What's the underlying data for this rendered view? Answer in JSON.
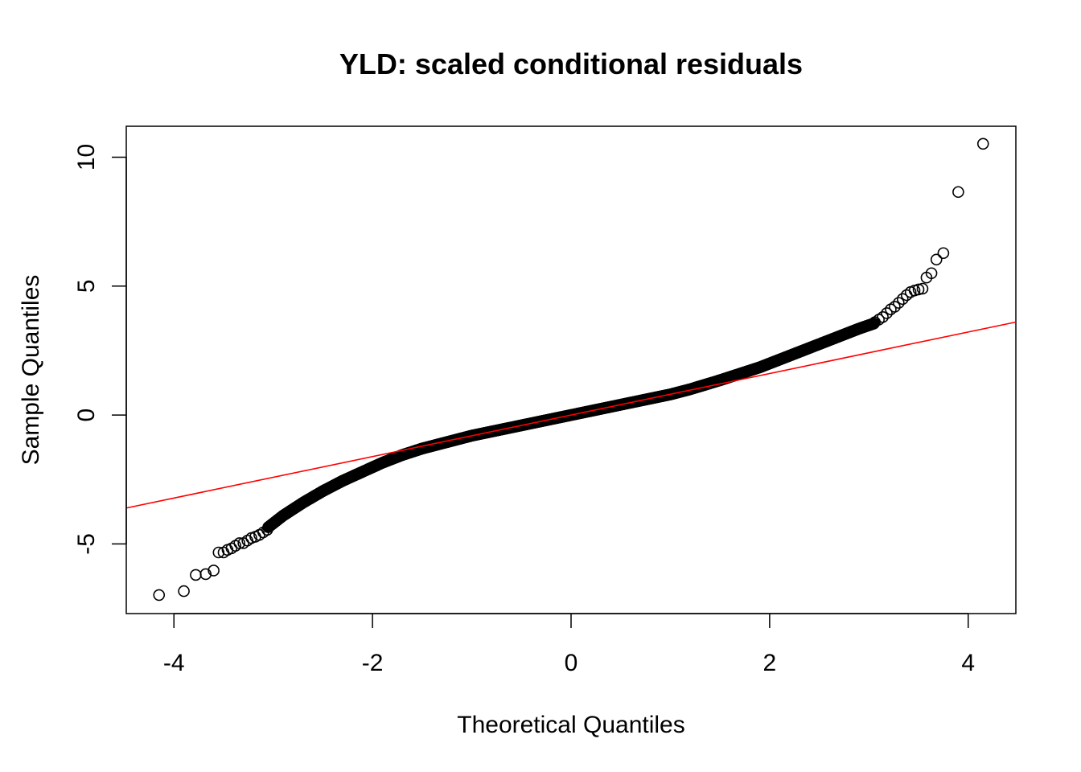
{
  "chart_data": {
    "type": "scatter",
    "title": "YLD: scaled conditional residuals",
    "xlabel": "Theoretical Quantiles",
    "ylabel": "Sample Quantiles",
    "xlim": [
      -4.48,
      4.48
    ],
    "ylim": [
      -7.7,
      11.2
    ],
    "x_ticks": [
      -4,
      -2,
      0,
      2,
      4
    ],
    "x_tick_labels": [
      "-4",
      "-2",
      "0",
      "2",
      "4"
    ],
    "y_ticks": [
      -5,
      0,
      5,
      10
    ],
    "y_tick_labels": [
      "-5",
      "0",
      "5",
      "10"
    ],
    "grid": false,
    "legend": "none",
    "point_color": "#000000",
    "line_color": "#ff0000",
    "reference_line": {
      "intercept": 0.0,
      "slope": 0.805
    },
    "outlier_points": [
      {
        "x": -4.15,
        "y": -6.98
      },
      {
        "x": -3.9,
        "y": -6.83
      },
      {
        "x": -3.78,
        "y": -6.2
      },
      {
        "x": -3.68,
        "y": -6.17
      },
      {
        "x": -3.6,
        "y": -6.03
      },
      {
        "x": -3.55,
        "y": -5.33
      },
      {
        "x": -3.5,
        "y": -5.33
      },
      {
        "x": -3.46,
        "y": -5.23
      },
      {
        "x": -3.42,
        "y": -5.17
      },
      {
        "x": -3.38,
        "y": -5.07
      },
      {
        "x": -3.34,
        "y": -4.97
      },
      {
        "x": -3.3,
        "y": -4.97
      },
      {
        "x": -3.26,
        "y": -4.87
      },
      {
        "x": -3.22,
        "y": -4.77
      },
      {
        "x": -3.18,
        "y": -4.72
      },
      {
        "x": -3.14,
        "y": -4.65
      },
      {
        "x": -3.1,
        "y": -4.55
      },
      {
        "x": -3.06,
        "y": -4.45
      },
      {
        "x": 3.06,
        "y": 3.6
      },
      {
        "x": 3.1,
        "y": 3.7
      },
      {
        "x": 3.14,
        "y": 3.8
      },
      {
        "x": 3.18,
        "y": 3.95
      },
      {
        "x": 3.22,
        "y": 4.1
      },
      {
        "x": 3.26,
        "y": 4.2
      },
      {
        "x": 3.3,
        "y": 4.35
      },
      {
        "x": 3.34,
        "y": 4.5
      },
      {
        "x": 3.38,
        "y": 4.65
      },
      {
        "x": 3.42,
        "y": 4.77
      },
      {
        "x": 3.46,
        "y": 4.83
      },
      {
        "x": 3.5,
        "y": 4.87
      },
      {
        "x": 3.54,
        "y": 4.9
      },
      {
        "x": 3.58,
        "y": 5.33
      },
      {
        "x": 3.63,
        "y": 5.5
      },
      {
        "x": 3.68,
        "y": 6.03
      },
      {
        "x": 3.75,
        "y": 6.28
      },
      {
        "x": 3.9,
        "y": 8.65
      },
      {
        "x": 4.15,
        "y": 10.52
      }
    ],
    "bulk_curve": [
      {
        "x": -3.05,
        "y": -4.35
      },
      {
        "x": -2.9,
        "y": -3.9
      },
      {
        "x": -2.7,
        "y": -3.4
      },
      {
        "x": -2.5,
        "y": -2.95
      },
      {
        "x": -2.3,
        "y": -2.55
      },
      {
        "x": -2.1,
        "y": -2.2
      },
      {
        "x": -1.9,
        "y": -1.85
      },
      {
        "x": -1.7,
        "y": -1.55
      },
      {
        "x": -1.5,
        "y": -1.3
      },
      {
        "x": -1.2,
        "y": -1.0
      },
      {
        "x": -1.0,
        "y": -0.8
      },
      {
        "x": -0.5,
        "y": -0.4
      },
      {
        "x": 0.0,
        "y": 0.0
      },
      {
        "x": 0.5,
        "y": 0.4
      },
      {
        "x": 1.0,
        "y": 0.8
      },
      {
        "x": 1.2,
        "y": 1.0
      },
      {
        "x": 1.5,
        "y": 1.35
      },
      {
        "x": 1.7,
        "y": 1.6
      },
      {
        "x": 1.9,
        "y": 1.85
      },
      {
        "x": 2.1,
        "y": 2.15
      },
      {
        "x": 2.3,
        "y": 2.45
      },
      {
        "x": 2.5,
        "y": 2.75
      },
      {
        "x": 2.7,
        "y": 3.05
      },
      {
        "x": 2.9,
        "y": 3.35
      },
      {
        "x": 3.05,
        "y": 3.55
      }
    ]
  }
}
